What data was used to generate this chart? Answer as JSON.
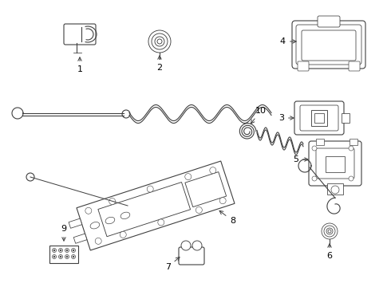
{
  "bg_color": "#ffffff",
  "line_color": "#404040",
  "label_color": "#000000",
  "figsize": [
    4.9,
    3.6
  ],
  "dpi": 100
}
